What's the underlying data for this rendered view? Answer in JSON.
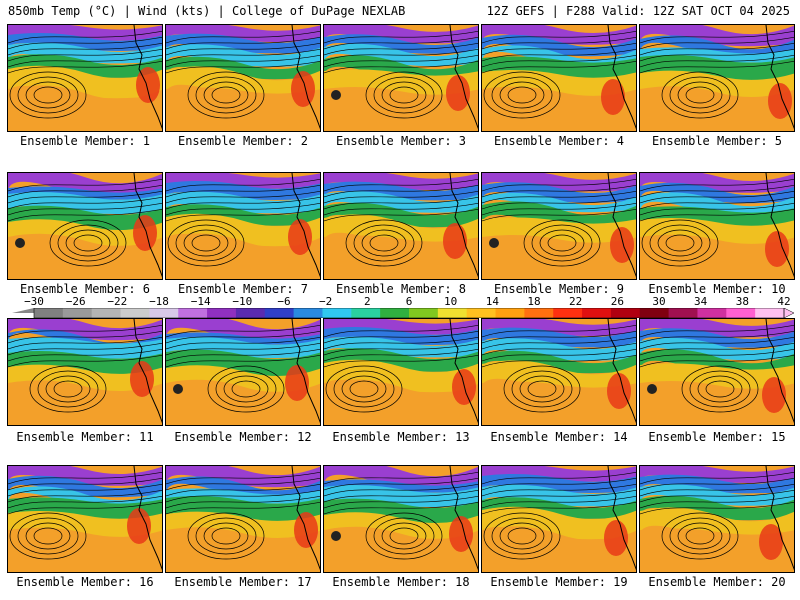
{
  "header": {
    "left": "850mb Temp (°C) | Wind (kts) | College of DuPage NEXLAB",
    "right": "12Z GEFS | F288 Valid: 12Z SAT OCT 04 2025"
  },
  "panels": [
    {
      "member": 1,
      "label": "Ensemble Member: 1"
    },
    {
      "member": 2,
      "label": "Ensemble Member: 2"
    },
    {
      "member": 3,
      "label": "Ensemble Member: 3"
    },
    {
      "member": 4,
      "label": "Ensemble Member: 4"
    },
    {
      "member": 5,
      "label": "Ensemble Member: 5"
    },
    {
      "member": 6,
      "label": "Ensemble Member: 6"
    },
    {
      "member": 7,
      "label": "Ensemble Member: 7"
    },
    {
      "member": 8,
      "label": "Ensemble Member: 8"
    },
    {
      "member": 9,
      "label": "Ensemble Member: 9"
    },
    {
      "member": 10,
      "label": "Ensemble Member: 10"
    },
    {
      "member": 11,
      "label": "Ensemble Member: 11"
    },
    {
      "member": 12,
      "label": "Ensemble Member: 12"
    },
    {
      "member": 13,
      "label": "Ensemble Member: 13"
    },
    {
      "member": 14,
      "label": "Ensemble Member: 14"
    },
    {
      "member": 15,
      "label": "Ensemble Member: 15"
    },
    {
      "member": 16,
      "label": "Ensemble Member: 16"
    },
    {
      "member": 17,
      "label": "Ensemble Member: 17"
    },
    {
      "member": 18,
      "label": "Ensemble Member: 18"
    },
    {
      "member": 19,
      "label": "Ensemble Member: 19"
    },
    {
      "member": 20,
      "label": "Ensemble Member: 20"
    }
  ],
  "colorbar": {
    "ticks": [
      "−30",
      "−26",
      "−22",
      "−18",
      "−14",
      "−10",
      "−6",
      "−2",
      "2",
      "6",
      "10",
      "14",
      "18",
      "22",
      "26",
      "30",
      "34",
      "38",
      "42"
    ],
    "colors": [
      "#808080",
      "#9a9a9a",
      "#b4b4b4",
      "#cccccc",
      "#d8c8e8",
      "#c070e0",
      "#9030c0",
      "#5a2bb0",
      "#3040c8",
      "#2a8ae0",
      "#30c8f0",
      "#2ad0a0",
      "#30b040",
      "#80c820",
      "#f0e030",
      "#ffc020",
      "#ffa010",
      "#ff7010",
      "#ff3010",
      "#e01010",
      "#b00010",
      "#800010",
      "#a01050",
      "#d030a0",
      "#ff60d0",
      "#ffc0f0"
    ]
  },
  "palette": {
    "polar": "#9a3fd0",
    "cold": "#2f78e0",
    "cool": "#38c4e8",
    "mild": "#2aa84a",
    "warm": "#f0c020",
    "hot": "#f3a02a",
    "heat": "#e83a18"
  }
}
